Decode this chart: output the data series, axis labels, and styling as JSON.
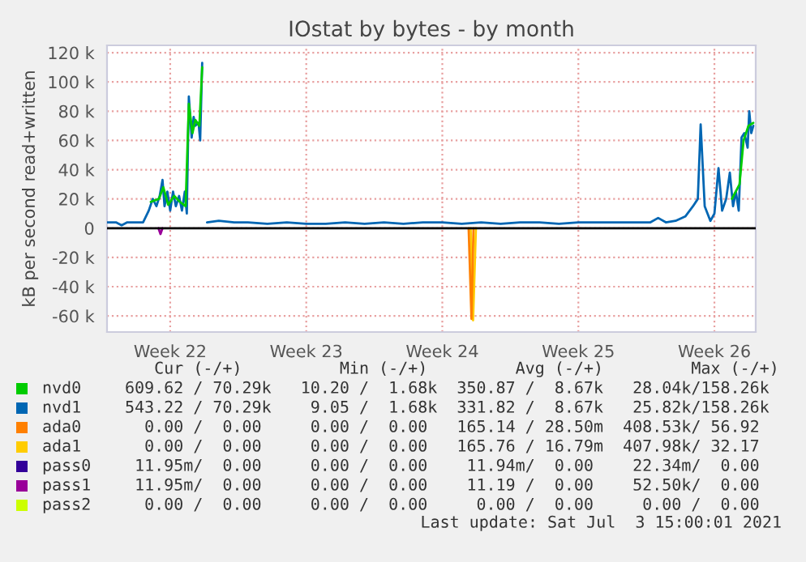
{
  "chart_data": {
    "type": "line",
    "title": "IOstat by bytes - by month",
    "ylabel": "kB per second read+written",
    "xlim": [
      "2021-05-31T06:00",
      "2021-07-03T15:00"
    ],
    "xticks": [
      {
        "value": "2021-06-03T12:00",
        "label": "Week 22"
      },
      {
        "value": "2021-06-10T12:00",
        "label": "Week 23"
      },
      {
        "value": "2021-06-17T12:00",
        "label": "Week 24"
      },
      {
        "value": "2021-06-24T12:00",
        "label": "Week 25"
      },
      {
        "value": "2021-07-01T12:00",
        "label": "Week 26"
      }
    ],
    "ylim": [
      -71000,
      125000
    ],
    "yticks": [
      {
        "value": -60000,
        "label": "-60 k"
      },
      {
        "value": -40000,
        "label": "-40 k"
      },
      {
        "value": -20000,
        "label": "-20 k"
      },
      {
        "value": 0,
        "label": "0"
      },
      {
        "value": 20000,
        "label": "20 k"
      },
      {
        "value": 40000,
        "label": "40 k"
      },
      {
        "value": 60000,
        "label": "60 k"
      },
      {
        "value": 80000,
        "label": "80 k"
      },
      {
        "value": 100000,
        "label": "100 k"
      },
      {
        "value": 120000,
        "label": "120 k"
      }
    ],
    "grid": true,
    "legend": "bottom",
    "line_style": "solid",
    "marker": "none",
    "ref_lines": [
      {
        "axis": "y",
        "value": 0,
        "color": "#000000"
      }
    ],
    "series": [
      {
        "name": "nvd0",
        "color": "#00cc00",
        "x": [
          "2021-06-02T12:00",
          "2021-06-02T22:00",
          "2021-06-03T03:30",
          "2021-06-03T09:30",
          "2021-06-03T17:00",
          "2021-06-04T00:00",
          "2021-06-04T07:00",
          "2021-06-04T11:00",
          "2021-06-04T15:30",
          "2021-06-04T19:00",
          "2021-06-05T00:00",
          "2021-06-05T03:30",
          "2021-06-05T12:00",
          "2021-07-02T09:30",
          "2021-07-02T19:00",
          "2021-07-03T00:00",
          "2021-07-03T06:00",
          "2021-07-03T12:00"
        ],
        "values": [
          18000,
          20000,
          28000,
          16000,
          22000,
          18000,
          15000,
          85000,
          65000,
          74000,
          70000,
          110000,
          null,
          20000,
          30000,
          60000,
          70000,
          72000
        ]
      },
      {
        "name": "nvd1",
        "color": "#0066b3",
        "x": [
          "2021-05-31T06:00",
          "2021-05-31T17:00",
          "2021-06-01T00:00",
          "2021-06-01T07:00",
          "2021-06-01T17:00",
          "2021-06-02T02:30",
          "2021-06-02T09:30",
          "2021-06-02T14:30",
          "2021-06-02T19:00",
          "2021-06-02T23:00",
          "2021-06-03T02:30",
          "2021-06-03T05:00",
          "2021-06-03T08:30",
          "2021-06-03T12:00",
          "2021-06-03T15:30",
          "2021-06-03T19:00",
          "2021-06-03T23:00",
          "2021-06-04T02:30",
          "2021-06-04T06:00",
          "2021-06-04T08:30",
          "2021-06-04T11:00",
          "2021-06-04T14:30",
          "2021-06-04T17:00",
          "2021-06-04T19:00",
          "2021-06-04T23:00",
          "2021-06-05T01:00",
          "2021-06-05T03:30",
          "2021-06-05T05:00",
          "2021-06-05T09:30",
          "2021-06-06T00:00",
          "2021-06-06T19:00",
          "2021-06-07T12:00",
          "2021-06-08T12:00",
          "2021-06-09T12:00",
          "2021-06-10T12:00",
          "2021-06-11T12:00",
          "2021-06-12T12:00",
          "2021-06-13T12:00",
          "2021-06-14T12:00",
          "2021-06-15T12:00",
          "2021-06-16T12:00",
          "2021-06-17T12:00",
          "2021-06-18T12:00",
          "2021-06-19T12:00",
          "2021-06-20T12:00",
          "2021-06-21T12:00",
          "2021-06-22T12:00",
          "2021-06-23T12:00",
          "2021-06-24T12:00",
          "2021-06-25T12:00",
          "2021-06-26T12:00",
          "2021-06-27T12:00",
          "2021-06-28T05:00",
          "2021-06-28T14:30",
          "2021-06-29T00:00",
          "2021-06-29T12:00",
          "2021-06-30T00:00",
          "2021-06-30T09:30",
          "2021-06-30T15:30",
          "2021-06-30T19:00",
          "2021-07-01T00:00",
          "2021-07-01T07:00",
          "2021-07-01T12:00",
          "2021-07-01T17:00",
          "2021-07-01T21:30",
          "2021-07-02T02:30",
          "2021-07-02T07:00",
          "2021-07-02T11:00",
          "2021-07-02T14:30",
          "2021-07-02T18:00",
          "2021-07-02T21:30",
          "2021-07-03T01:00",
          "2021-07-03T05:00",
          "2021-07-03T07:00",
          "2021-07-03T09:30",
          "2021-07-03T12:00"
        ],
        "values": [
          4000,
          4000,
          2000,
          4000,
          4000,
          4000,
          12000,
          20000,
          15000,
          22000,
          33000,
          15000,
          25000,
          12000,
          25000,
          15000,
          22000,
          12000,
          25000,
          10000,
          90000,
          62000,
          76000,
          70000,
          72000,
          60000,
          113000,
          null,
          4000,
          5000,
          4000,
          4000,
          3000,
          4000,
          3000,
          3000,
          4000,
          3000,
          4000,
          3000,
          4000,
          4000,
          3000,
          4000,
          3000,
          4000,
          4000,
          3000,
          4000,
          4000,
          4000,
          4000,
          4000,
          7000,
          4000,
          5000,
          8000,
          15000,
          20000,
          71000,
          15000,
          5000,
          10000,
          41000,
          12000,
          20000,
          38000,
          15000,
          25000,
          12000,
          62000,
          65000,
          55000,
          80000,
          65000,
          70000
        ]
      },
      {
        "name": "ada0",
        "color": "#ff8000",
        "x": [
          "2021-06-18T20:30",
          "2021-06-19T00:00",
          "2021-06-19T02:30"
        ],
        "values": [
          0,
          -62000,
          0
        ]
      },
      {
        "name": "ada1",
        "color": "#ffcc00",
        "x": [
          "2021-06-18T23:00",
          "2021-06-19T02:00",
          "2021-06-19T05:30"
        ],
        "values": [
          0,
          -63000,
          0
        ]
      },
      {
        "name": "pass0",
        "color": "#330099"
      },
      {
        "name": "pass1",
        "color": "#990099",
        "x": [
          "2021-06-02T21:30",
          "2021-06-03T00:00",
          "2021-06-03T02:30"
        ],
        "values": [
          0,
          -4000,
          0
        ]
      },
      {
        "name": "pass2",
        "color": "#ccff00"
      }
    ],
    "annotations": [
      "   Cur (-/+)          Min (-/+)         Avg (-/+)         Max (-/+)",
      "609.62 / 70.29k   10.20 /  1.68k  350.87 /  8.67k   28.04k/158.26k",
      "543.22 / 70.29k    9.05 /  1.68k  331.82 /  8.67k   25.82k/158.26k",
      "  0.00 /  0.00     0.00 /  0.00   165.14 / 28.50m  408.53k/ 56.92",
      "  0.00 /  0.00     0.00 /  0.00   165.76 / 16.79m  407.98k/ 32.17",
      " 11.95m/  0.00     0.00 /  0.00    11.94m/  0.00    22.34m/  0.00",
      " 11.95m/  0.00     0.00 /  0.00    11.19 /  0.00    52.50k/  0.00",
      "  0.00 /  0.00     0.00 /  0.00     0.00 /  0.00     0.00 /  0.00",
      "Last update: Sat Jul  3 15:00:01 2021"
    ]
  }
}
